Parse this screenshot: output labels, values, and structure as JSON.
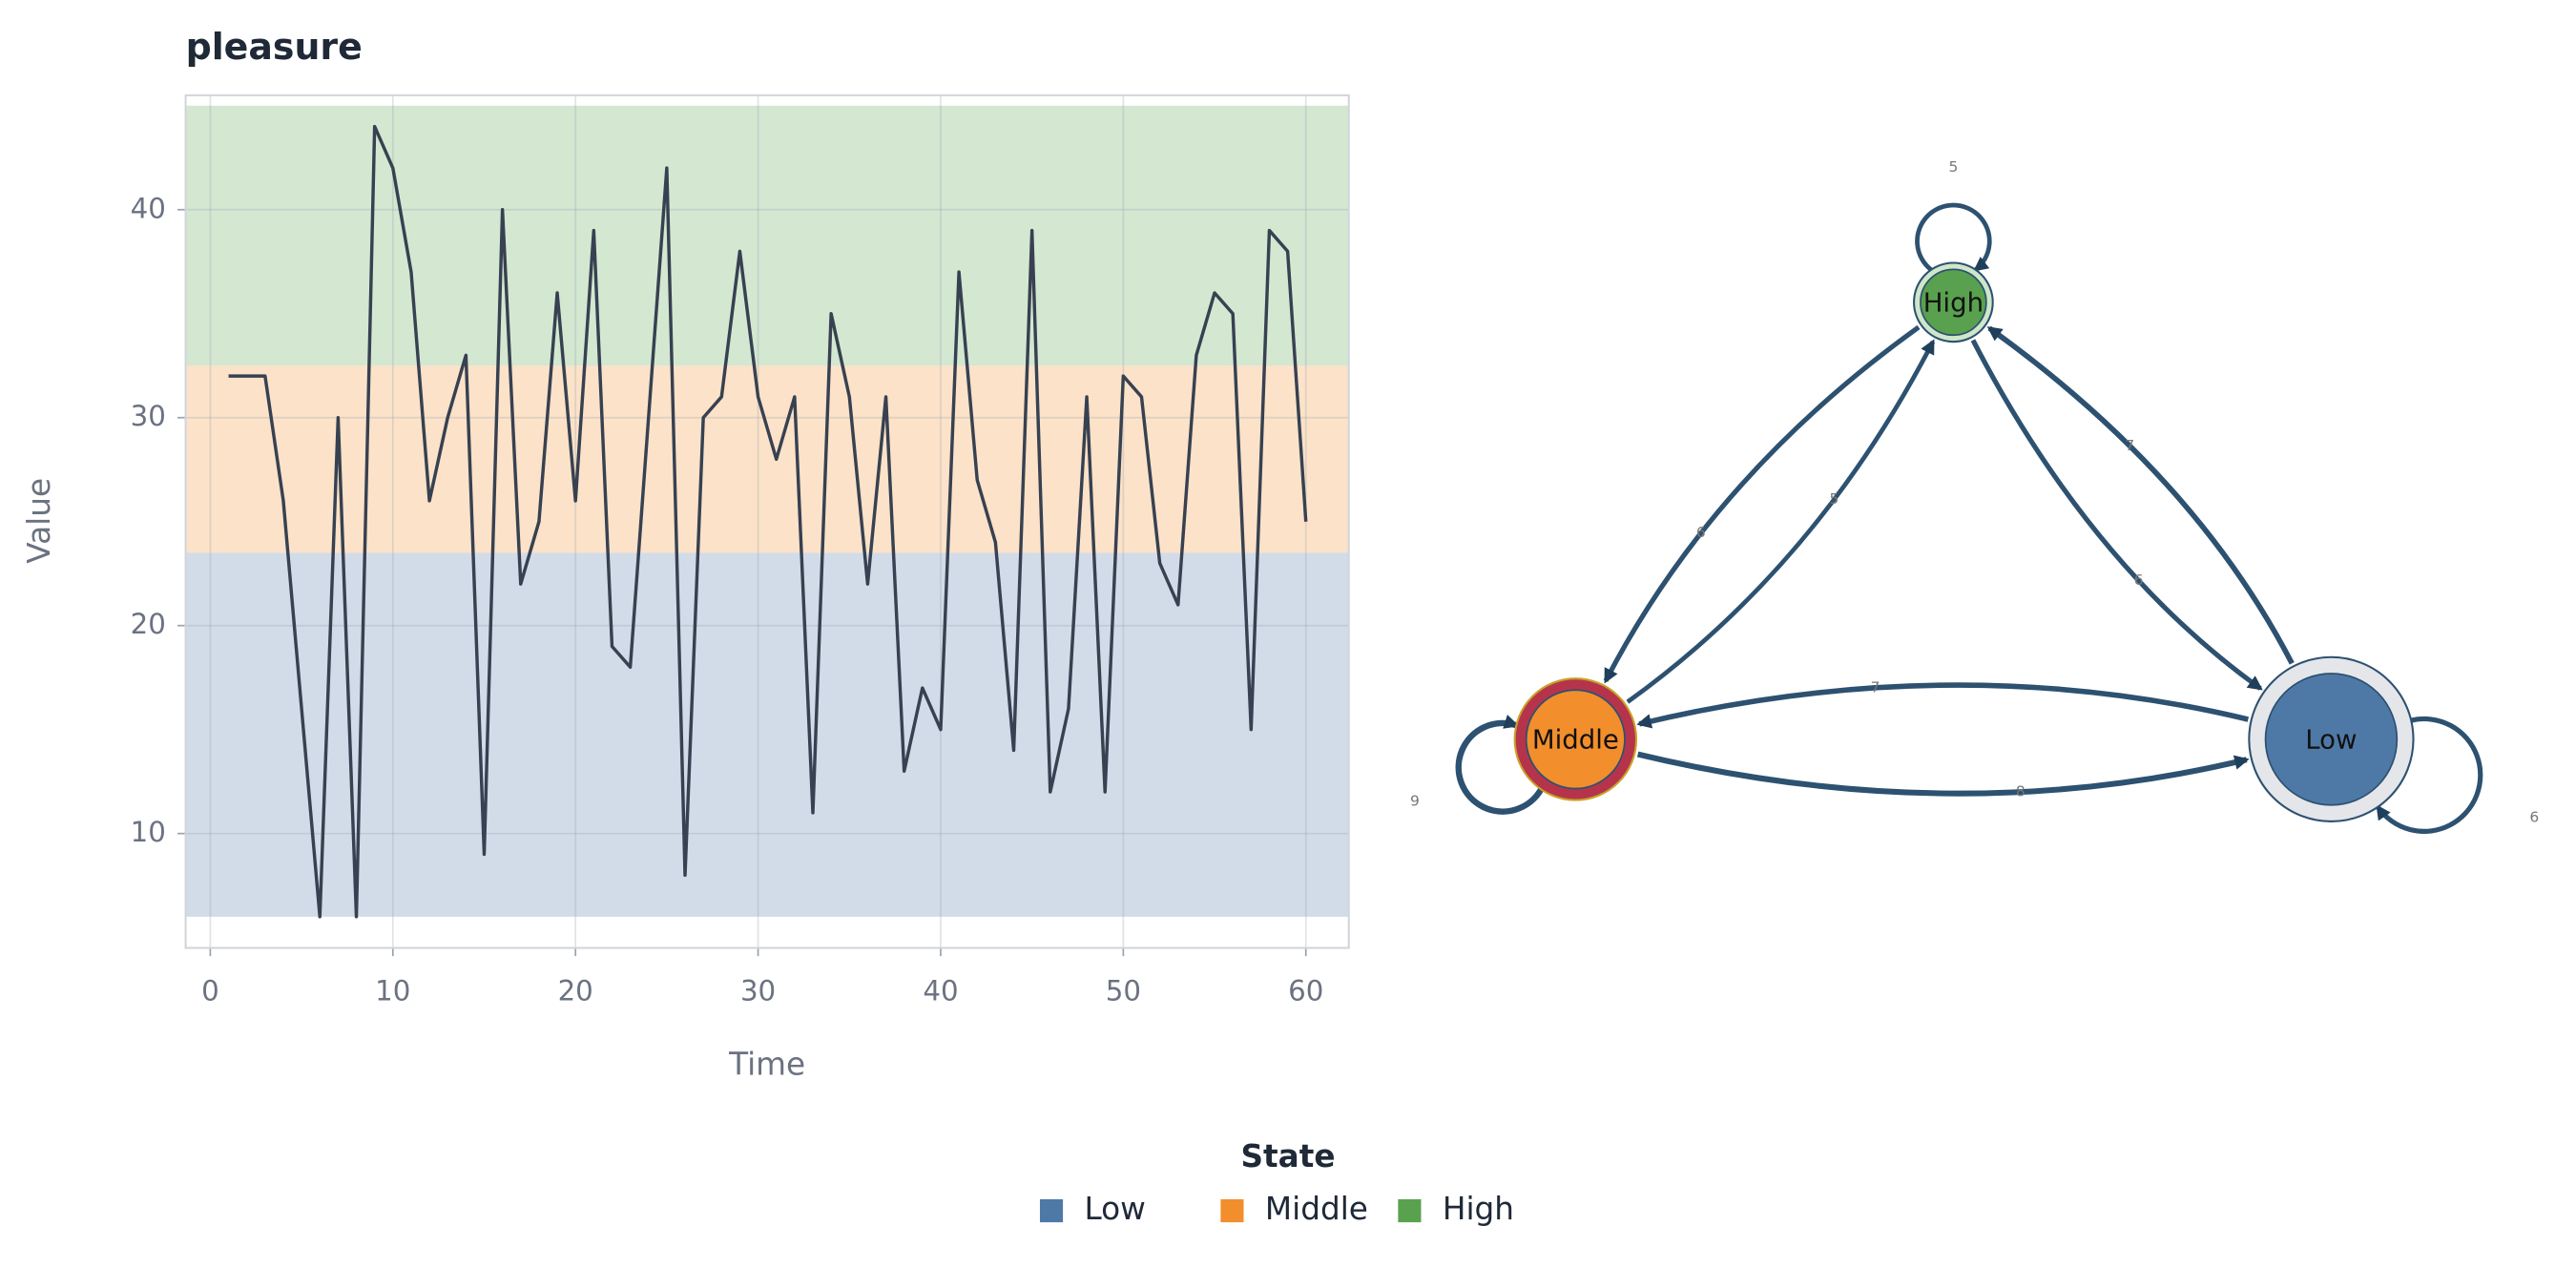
{
  "chart_data": {
    "type": "line",
    "title": "pleasure",
    "x_label": "Time",
    "y_label": "Value",
    "x": [
      1,
      2,
      3,
      4,
      5,
      6,
      7,
      8,
      9,
      10,
      11,
      12,
      13,
      14,
      15,
      16,
      17,
      18,
      19,
      20,
      21,
      22,
      23,
      24,
      25,
      26,
      27,
      28,
      29,
      30,
      31,
      32,
      33,
      34,
      35,
      36,
      37,
      38,
      39,
      40,
      41,
      42,
      43,
      44,
      45,
      46,
      47,
      48,
      49,
      50,
      51,
      52,
      53,
      54,
      55,
      56,
      57,
      58,
      59,
      60
    ],
    "values": [
      32,
      32,
      32,
      26,
      16,
      6,
      30,
      6,
      44,
      42,
      37,
      26,
      30,
      33,
      9,
      40,
      22,
      25,
      36,
      26,
      39,
      19,
      18,
      30,
      42,
      8,
      30,
      31,
      38,
      31,
      28,
      31,
      11,
      35,
      31,
      22,
      31,
      13,
      17,
      15,
      37,
      27,
      24,
      14,
      39,
      12,
      16,
      31,
      12,
      32,
      31,
      23,
      21,
      33,
      36,
      35,
      15,
      39,
      38,
      25
    ],
    "color": "#374151",
    "xlim": [
      -1.35,
      62.35
    ],
    "ylim": [
      4.5,
      45.5
    ],
    "xticks": [
      0,
      10,
      20,
      30,
      40,
      50,
      60
    ],
    "yticks": [
      10,
      20,
      30,
      40
    ],
    "grid": true,
    "legend_title": "State",
    "bands": [
      {
        "name": "Low",
        "color": "#4e79a7",
        "range": [
          6,
          23.5
        ]
      },
      {
        "name": "Middle",
        "color": "#f28e2b",
        "range": [
          23.5,
          32.5
        ]
      },
      {
        "name": "High",
        "color": "#59a14f",
        "range": [
          32.5,
          45
        ]
      }
    ]
  },
  "diagram": {
    "nodes": [
      {
        "label": "High",
        "color": "#59a14f"
      },
      {
        "label": "Middle",
        "color": "#f28e2b"
      },
      {
        "label": "Low",
        "color": "#4e79a7"
      }
    ],
    "edges": [
      {
        "source": "High",
        "target": "High",
        "weight": 5
      },
      {
        "source": "Middle",
        "target": "Middle",
        "weight": 9
      },
      {
        "source": "Low",
        "target": "Low",
        "weight": 6
      },
      {
        "source": "Middle",
        "target": "High",
        "weight": 5
      },
      {
        "source": "High",
        "target": "Middle",
        "weight": 6
      },
      {
        "source": "Low",
        "target": "High",
        "weight": 7
      },
      {
        "source": "High",
        "target": "Low",
        "weight": 6
      },
      {
        "source": "Middle",
        "target": "Low",
        "weight": 8
      },
      {
        "source": "Low",
        "target": "Middle",
        "weight": 7
      }
    ]
  }
}
